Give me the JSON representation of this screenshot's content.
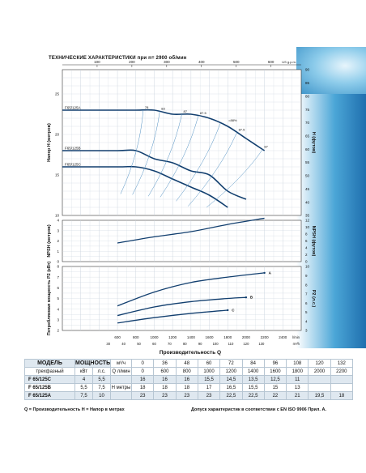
{
  "page": {
    "title": "ТЕХНИЧЕСКИЕ ХАРАКТЕРИСТИКИ при n= 2900 об/мин",
    "axis_title": "Производительность   Q",
    "colors": {
      "curve": "#123f6f",
      "grid": "#c9d3dd",
      "iso": "#4f8fc2",
      "panel": "#dceaf4"
    }
  },
  "chart_data": [
    {
      "type": "line",
      "panel": "head",
      "ylabel_left": "Напор  H  (метров)",
      "ylabel_right": "H  (футов)",
      "x_unit": "l/min",
      "xlim": [
        0,
        2600
      ],
      "ylim": [
        10,
        28
      ],
      "yticks": [
        10,
        15,
        20,
        25
      ],
      "yticks_right": [
        35,
        40,
        45,
        50,
        55,
        60,
        65,
        70,
        75,
        80,
        85,
        90
      ],
      "top_axis_label": "US g.p.m.",
      "top_ticks": [
        100,
        200,
        300,
        400,
        500,
        600
      ],
      "series": [
        {
          "name": "F65/125A",
          "x": [
            0,
            600,
            800,
            1000,
            1200,
            1400,
            1600,
            1800,
            2000,
            2200
          ],
          "y": [
            23,
            23,
            23,
            23,
            22.5,
            22.5,
            22,
            21,
            19.5,
            18
          ]
        },
        {
          "name": "F65/125B",
          "x": [
            0,
            600,
            800,
            1000,
            1200,
            1400,
            1600,
            1800,
            2000
          ],
          "y": [
            18,
            18,
            18,
            17,
            16.5,
            15.5,
            15,
            13,
            12
          ]
        },
        {
          "name": "F65/125C",
          "x": [
            0,
            600,
            800,
            1000,
            1200,
            1400,
            1600,
            1800
          ],
          "y": [
            16,
            16,
            16,
            15.5,
            14.5,
            13.5,
            12.5,
            11
          ]
        }
      ],
      "efficiency_labels": [
        "78",
        "83",
        "87",
        "87.5",
        "=88%",
        "87.5",
        "87"
      ]
    },
    {
      "type": "line",
      "panel": "npsh",
      "ylabel_left": "NPSH  (метров)",
      "ylabel_right": "NPSH  (футов)",
      "xlim": [
        0,
        2600
      ],
      "ylim": [
        0,
        4
      ],
      "yticks": [
        0,
        1,
        2,
        3,
        4
      ],
      "yticks_right": [
        0,
        2,
        4,
        6,
        8,
        10,
        12
      ],
      "series": [
        {
          "x": [
            600,
            1000,
            1400,
            1800,
            2200
          ],
          "y": [
            1.8,
            2.4,
            2.9,
            3.6,
            4.2
          ]
        }
      ]
    },
    {
      "type": "line",
      "panel": "power",
      "ylabel_left": "Потребляемая мощность  P2  (кВт)",
      "ylabel_right": "P2  (л.с.)",
      "xlim": [
        0,
        2600
      ],
      "ylim": [
        2,
        8
      ],
      "yticks": [
        2,
        3,
        4,
        5,
        6,
        7,
        8
      ],
      "yticks_right": [
        3,
        4,
        5,
        6,
        7,
        8,
        9,
        10
      ],
      "x_ticks": [
        600,
        800,
        1000,
        1200,
        1400,
        1600,
        1800,
        2000,
        2200,
        2400
      ],
      "x_unit_label": "l/min",
      "x_ticks2": [
        30,
        40,
        50,
        60,
        70,
        80,
        90,
        100,
        110,
        120,
        130
      ],
      "x_unit2_label": "m³/h",
      "series": [
        {
          "name": "A",
          "x": [
            600,
            1000,
            1400,
            1800,
            2200
          ],
          "y": [
            4.3,
            5.6,
            6.5,
            7.0,
            7.4
          ]
        },
        {
          "name": "B",
          "x": [
            600,
            1000,
            1400,
            1800,
            2000
          ],
          "y": [
            3.4,
            4.2,
            4.7,
            5.0,
            5.1
          ]
        },
        {
          "name": "C",
          "x": [
            600,
            1000,
            1400,
            1800
          ],
          "y": [
            2.7,
            3.2,
            3.6,
            3.9
          ]
        }
      ]
    }
  ],
  "table": {
    "model_label": "МОДЕЛЬ",
    "power_label": "МОЩНОСТЬ",
    "phase_label": "трехфазный",
    "kw_label": "кВт",
    "hp_label": "л.с.",
    "q_label": "Q",
    "q_unit_m3": "м³/ч",
    "q_unit_lmin": "л/мин",
    "h_label": "Н метры",
    "q_m3": [
      "0",
      "36",
      "48",
      "60",
      "72",
      "84",
      "96",
      "108",
      "120",
      "132"
    ],
    "q_lmin": [
      "0",
      "600",
      "800",
      "1000",
      "1200",
      "1400",
      "1600",
      "1800",
      "2000",
      "2200"
    ],
    "rows": [
      {
        "model": "F 65/125C",
        "kw": "4",
        "hp": "5,5",
        "h": [
          "16",
          "16",
          "16",
          "15,5",
          "14,5",
          "13,5",
          "12,5",
          "11",
          "",
          ""
        ]
      },
      {
        "model": "F 65/125B",
        "kw": "5,5",
        "hp": "7,5",
        "h": [
          "18",
          "18",
          "18",
          "17",
          "16,5",
          "15,5",
          "15",
          "13",
          "",
          ""
        ]
      },
      {
        "model": "F 65/125A",
        "kw": "7,5",
        "hp": "10",
        "h": [
          "23",
          "23",
          "23",
          "23",
          "22,5",
          "22,5",
          "22",
          "21",
          "19,5",
          "18"
        ]
      }
    ]
  },
  "footer": {
    "left": "Q = Производительность  H = Напор в метрах",
    "right": "Допуск характеристик в соответствии с EN ISO 9906 Прил. A."
  }
}
